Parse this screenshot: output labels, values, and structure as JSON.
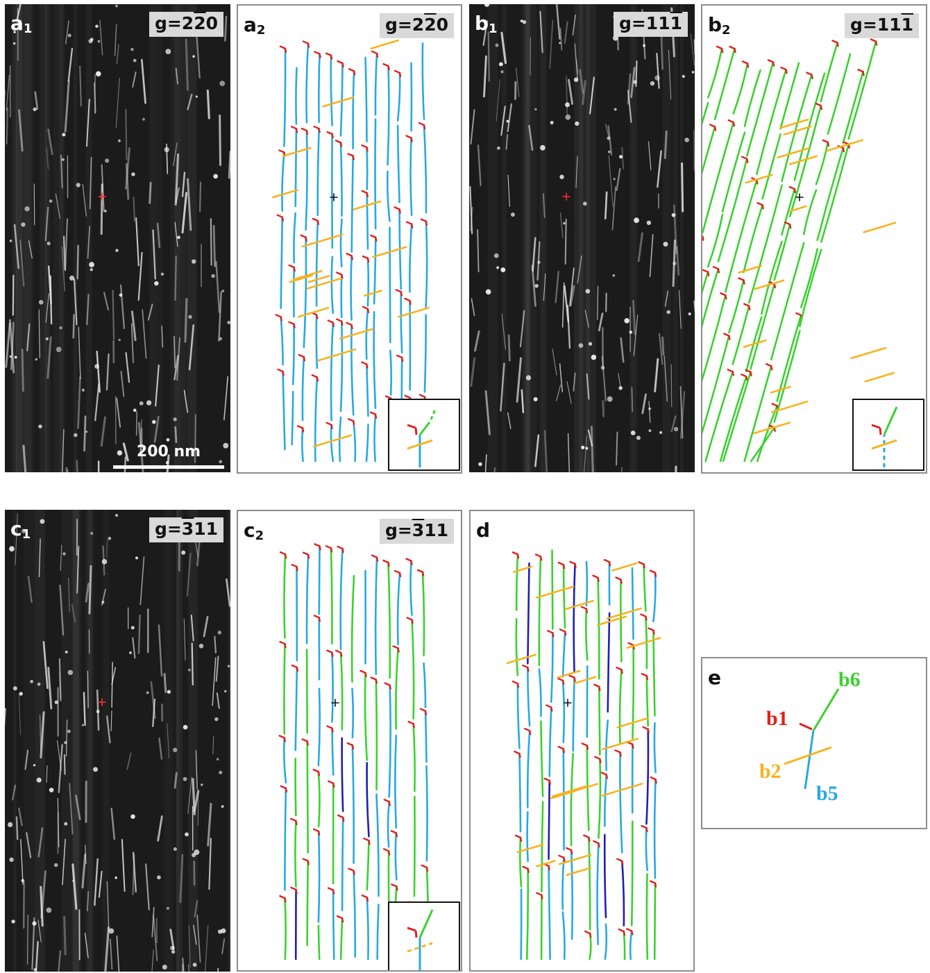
{
  "panels": {
    "a1": {
      "letter": "a",
      "sub": "1",
      "g_prefix": "g=2",
      "g_bar": "2",
      "g_suffix": "0"
    },
    "a2": {
      "letter": "a",
      "sub": "2",
      "g_prefix": "g=2",
      "g_bar": "2",
      "g_suffix": "0"
    },
    "b1": {
      "letter": "b",
      "sub": "1",
      "g_prefix": "g=11",
      "g_bar": "1",
      "g_suffix": ""
    },
    "b2": {
      "letter": "b",
      "sub": "2",
      "g_prefix": "g=11",
      "g_bar": "1",
      "g_suffix": ""
    },
    "c1": {
      "letter": "c",
      "sub": "1",
      "g_prefix": "g=",
      "g_bar": "3",
      "g_suffix": "11"
    },
    "c2": {
      "letter": "c",
      "sub": "2",
      "g_prefix": "g=",
      "g_bar": "3",
      "g_suffix": "11"
    },
    "d": {
      "letter": "d"
    },
    "e": {
      "letter": "e"
    }
  },
  "scale_bar": {
    "label": "200 nm"
  },
  "legend": {
    "b1": {
      "label": "b1",
      "color": "#e0201b"
    },
    "b2": {
      "label": "b2",
      "color": "#f7b21e"
    },
    "b5": {
      "label": "b5",
      "color": "#27a9e1"
    },
    "b6": {
      "label": "b6",
      "color": "#3bd12f"
    }
  },
  "colors": {
    "b1": "#e0201b",
    "b2": "#f7b21e",
    "b5": "#27a9e1",
    "b5_dark": "#1f1fb0",
    "b6": "#3bd12f",
    "marker_red": "#ff3030",
    "marker_black": "#111111"
  }
}
